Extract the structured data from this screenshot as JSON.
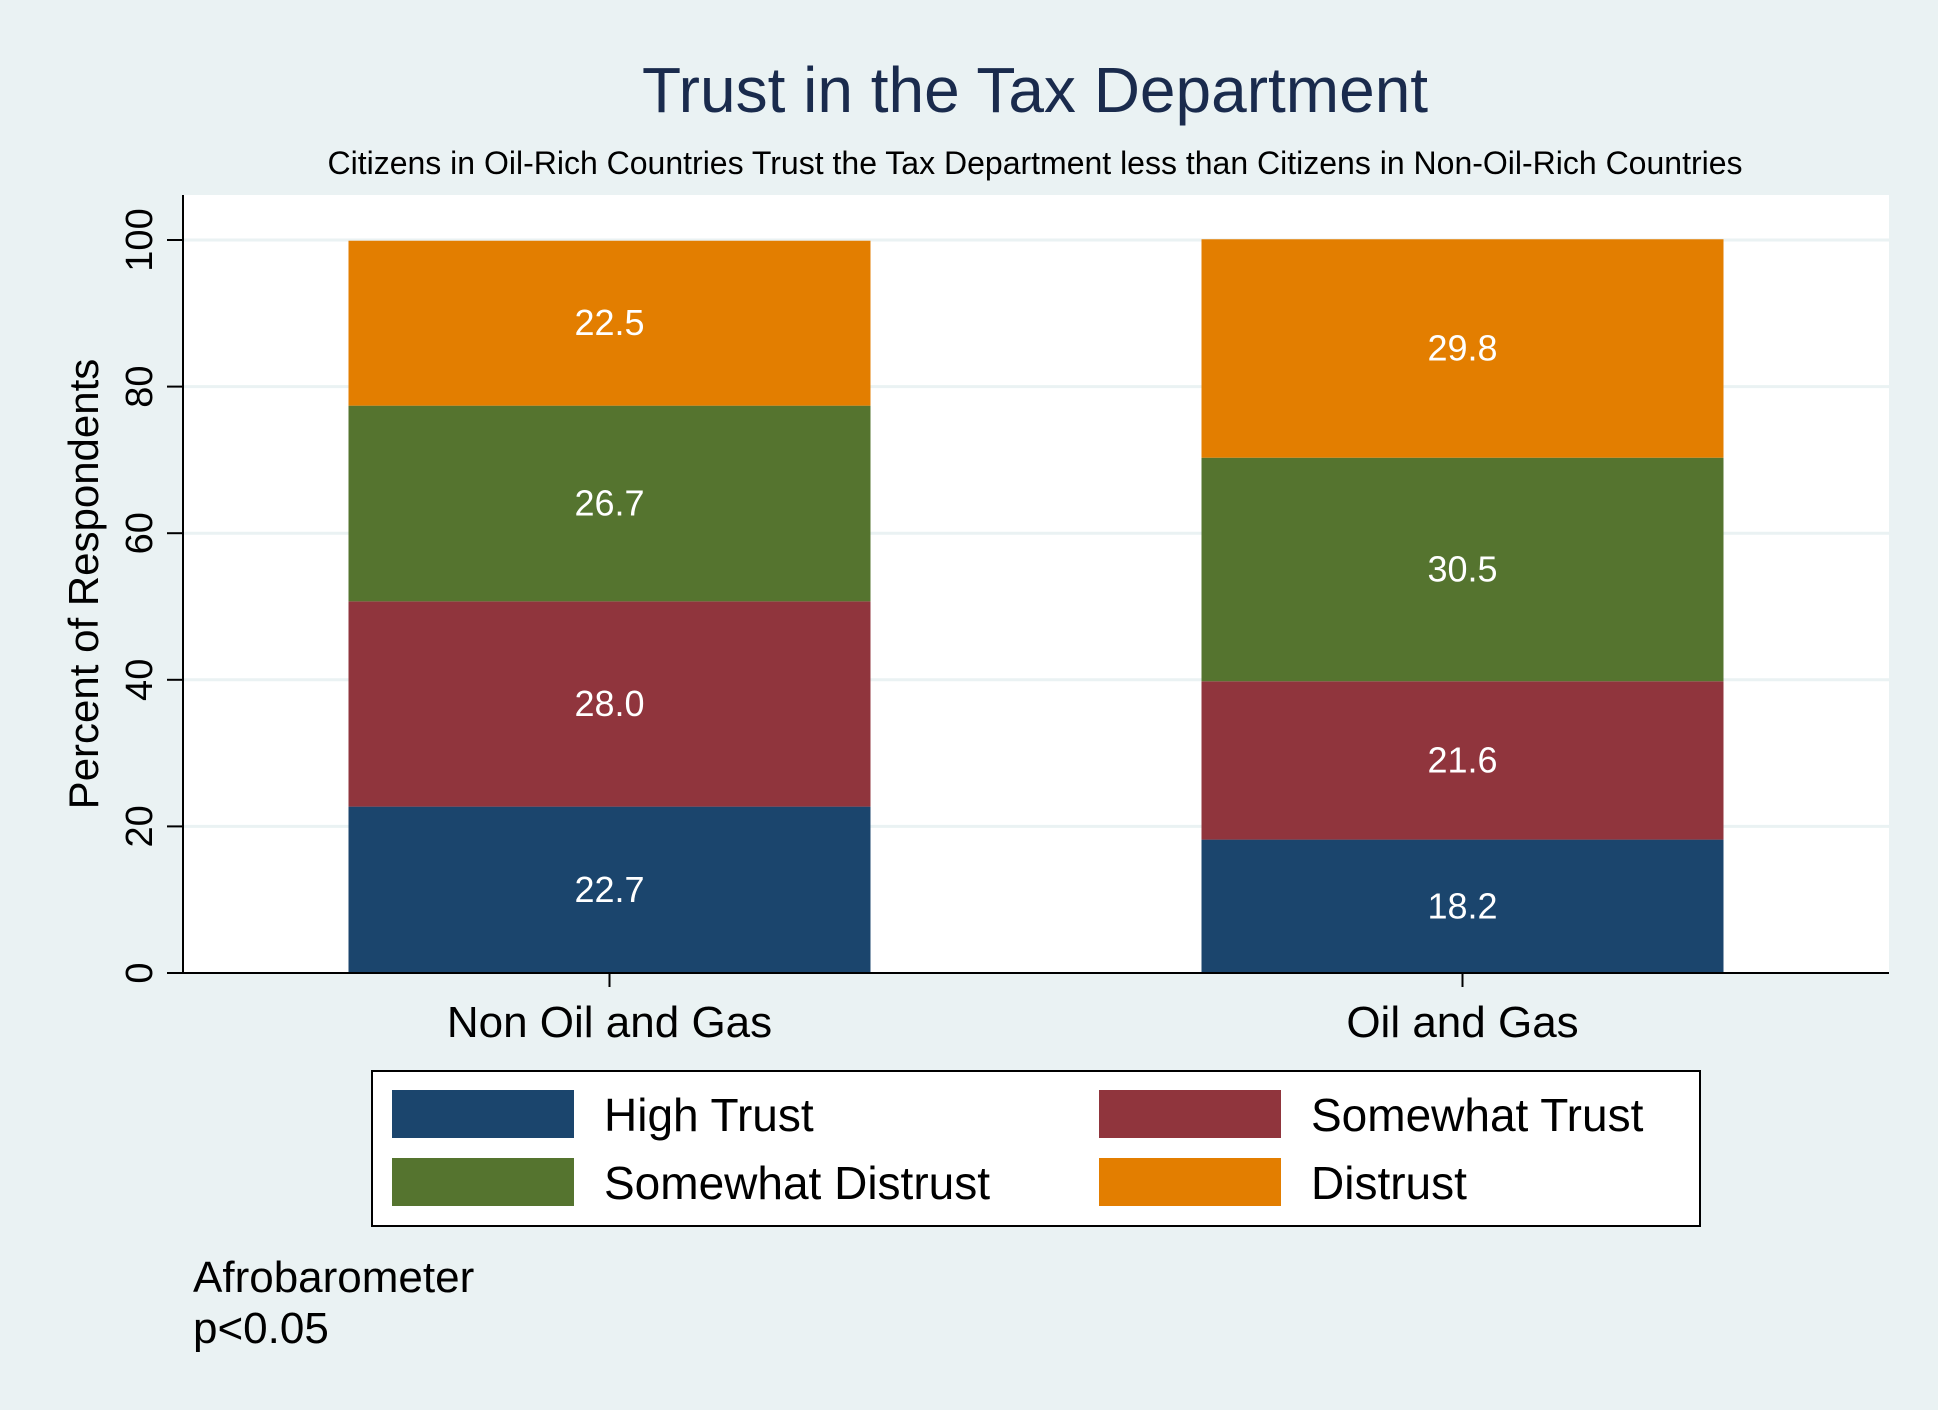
{
  "chart_data": {
    "type": "bar",
    "stacked": true,
    "title": "Trust in the Tax Department",
    "subtitle": "Citizens in Oil-Rich Countries Trust the Tax Department less than Citizens in Non-Oil-Rich Countries",
    "ylabel": "Percent of Respondents",
    "xlabel": "",
    "ylim": [
      0,
      100
    ],
    "yticks": [
      "0",
      "20",
      "40",
      "60",
      "80",
      "100"
    ],
    "categories": [
      "Non Oil and Gas",
      "Oil and Gas"
    ],
    "series": [
      {
        "name": "High Trust",
        "color": "#1b456d",
        "values": [
          22.7,
          18.2
        ],
        "labels": [
          "22.7",
          "18.2"
        ]
      },
      {
        "name": "Somewhat Trust",
        "color": "#90353d",
        "values": [
          28.0,
          21.6
        ],
        "labels": [
          "28.0",
          "21.6"
        ]
      },
      {
        "name": "Somewhat Distrust",
        "color": "#55742f",
        "values": [
          26.7,
          30.5
        ],
        "labels": [
          "26.7",
          "30.5"
        ]
      },
      {
        "name": "Distrust",
        "color": "#e37e00",
        "values": [
          22.5,
          29.8
        ],
        "labels": [
          "22.5",
          "29.8"
        ]
      }
    ],
    "legend_position": "bottom",
    "grid": true,
    "notes": [
      "Afrobarometer",
      "p<0.05"
    ]
  }
}
